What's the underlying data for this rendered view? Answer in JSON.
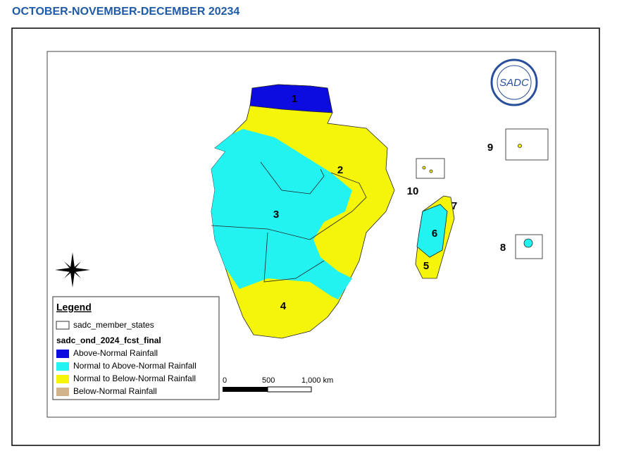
{
  "header": {
    "title": "OCTOBER-NOVEMBER-DECEMBER 20234"
  },
  "map": {
    "zone_labels": [
      "1",
      "2",
      "3",
      "4",
      "5",
      "6",
      "7",
      "8",
      "9",
      "10"
    ]
  },
  "logo": {
    "text": "SADC"
  },
  "legend": {
    "title": "Legend",
    "layer": "sadc_member_states",
    "subtitle": "sadc_ond_2024_fcst_final",
    "items": [
      {
        "label": "Above-Normal Rainfall",
        "color": "#0c0ce0"
      },
      {
        "label": "Normal to Above-Normal Rainfall",
        "color": "#22f2f0"
      },
      {
        "label": "Normal to Below-Normal Rainfall",
        "color": "#f5f50a"
      },
      {
        "label": "Below-Normal Rainfall",
        "color": "#d2b48c"
      }
    ]
  },
  "scale_bar": {
    "labels": [
      "0",
      "500",
      "1,000 km"
    ]
  }
}
